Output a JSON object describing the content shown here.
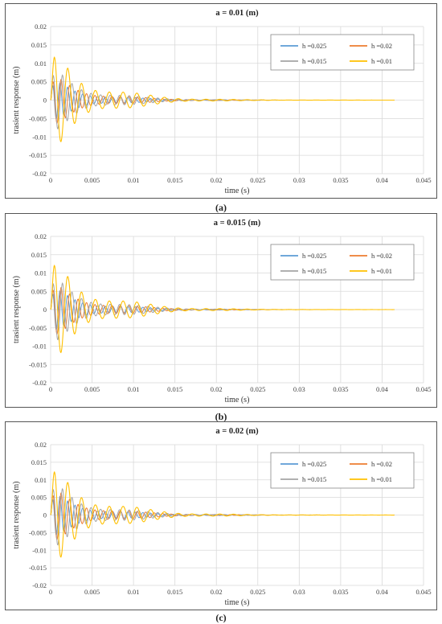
{
  "captions": [
    "(a)",
    "(b)",
    "(c)"
  ],
  "colors": {
    "h0025": "#5B9BD5",
    "h002": "#ED7D31",
    "h0015": "#A5A5A5",
    "h001": "#FFC000"
  },
  "chart_data": [
    {
      "type": "line",
      "title": "a = 0.01 (m)",
      "xlabel": "time (s)",
      "ylabel": "trasient response (m)",
      "xlim": [
        0,
        0.045
      ],
      "ylim": [
        -0.02,
        0.02
      ],
      "xticks": [
        "0",
        "0.005",
        "0.01",
        "0.015",
        "0.02",
        "0.025",
        "0.03",
        "0.035",
        "0.04",
        "0.045"
      ],
      "yticks": [
        "0.02",
        "0.015",
        "0.01",
        "0.005",
        "0",
        "-0.005",
        "-0.01",
        "-0.015",
        "-0.02"
      ],
      "grid": true,
      "legend": "top-right",
      "series": [
        {
          "name": "h =0.025",
          "amplitude": 0.0065,
          "decay": 220,
          "freq": 1100,
          "x_end": 0.0415
        },
        {
          "name": "h =0.02",
          "amplitude": 0.008,
          "decay": 215,
          "freq": 980,
          "x_end": 0.0415
        },
        {
          "name": "h =0.015",
          "amplitude": 0.01,
          "decay": 210,
          "freq": 870,
          "x_end": 0.0415
        },
        {
          "name": "h =0.01",
          "amplitude": 0.0155,
          "decay": 200,
          "freq": 600,
          "x_end": 0.0415
        }
      ]
    },
    {
      "type": "line",
      "title": "a = 0.015 (m)",
      "xlabel": "time (s)",
      "ylabel": "trasient response (m)",
      "xlim": [
        0,
        0.045
      ],
      "ylim": [
        -0.02,
        0.02
      ],
      "xticks": [
        "0",
        "0.005",
        "0.01",
        "0.015",
        "0.02",
        "0.025",
        "0.03",
        "0.035",
        "0.04",
        "0.045"
      ],
      "yticks": [
        "0.02",
        "0.015",
        "0.01",
        "0.005",
        "0",
        "-0.005",
        "-0.01",
        "-0.015",
        "-0.02"
      ],
      "grid": true,
      "legend": "top-right",
      "series": [
        {
          "name": "h =0.025",
          "amplitude": 0.007,
          "decay": 215,
          "freq": 1100,
          "x_end": 0.0415
        },
        {
          "name": "h =0.02",
          "amplitude": 0.0085,
          "decay": 210,
          "freq": 980,
          "x_end": 0.0415
        },
        {
          "name": "h =0.015",
          "amplitude": 0.0105,
          "decay": 205,
          "freq": 870,
          "x_end": 0.0415
        },
        {
          "name": "h =0.01",
          "amplitude": 0.016,
          "decay": 195,
          "freq": 600,
          "x_end": 0.0415
        }
      ]
    },
    {
      "type": "line",
      "title": "a = 0.02 (m)",
      "xlabel": "time (s)",
      "ylabel": "trasient response (m)",
      "xlim": [
        0,
        0.045
      ],
      "ylim": [
        -0.02,
        0.02
      ],
      "xticks": [
        "0",
        "0.005",
        "0.01",
        "0.015",
        "0.02",
        "0.025",
        "0.03",
        "0.035",
        "0.04",
        "0.045"
      ],
      "yticks": [
        "0.02",
        "0.015",
        "0.01",
        "0.005",
        "0",
        "-0.005",
        "-0.01",
        "-0.015",
        "-0.02"
      ],
      "grid": true,
      "legend": "top-right",
      "series": [
        {
          "name": "h =0.025",
          "amplitude": 0.0072,
          "decay": 210,
          "freq": 1100,
          "x_end": 0.0415
        },
        {
          "name": "h =0.02",
          "amplitude": 0.0088,
          "decay": 205,
          "freq": 980,
          "x_end": 0.0415
        },
        {
          "name": "h =0.015",
          "amplitude": 0.0108,
          "decay": 200,
          "freq": 870,
          "x_end": 0.0415
        },
        {
          "name": "h =0.01",
          "amplitude": 0.0162,
          "decay": 190,
          "freq": 600,
          "x_end": 0.0415
        }
      ]
    }
  ]
}
